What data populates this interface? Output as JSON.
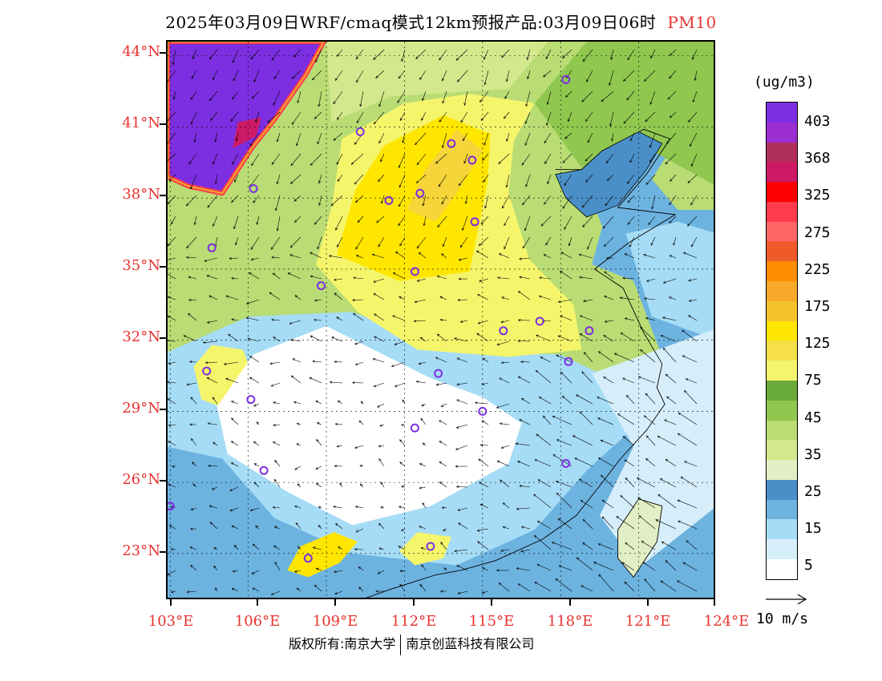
{
  "title": {
    "text": "2025年03月09日WRF/cmaq模式12km预报产品:03月09日06时",
    "variable": "PM10"
  },
  "map": {
    "lat_labels": [
      "44°N",
      "41°N",
      "38°N",
      "35°N",
      "32°N",
      "29°N",
      "26°N",
      "23°N"
    ],
    "lon_labels": [
      "103°E",
      "106°E",
      "109°E",
      "112°E",
      "115°E",
      "118°E",
      "121°E",
      "124°E"
    ],
    "lon_range": [
      102.9,
      124.0
    ],
    "lat_range": [
      21.0,
      44.6
    ],
    "city_marker_color": "#7b2fe0",
    "cities": [
      {
        "lon": 118.2,
        "lat": 43.0
      },
      {
        "lon": 110.3,
        "lat": 40.8
      },
      {
        "lon": 113.8,
        "lat": 40.3
      },
      {
        "lon": 114.6,
        "lat": 39.6
      },
      {
        "lon": 106.2,
        "lat": 38.4
      },
      {
        "lon": 111.4,
        "lat": 37.9
      },
      {
        "lon": 112.6,
        "lat": 38.2
      },
      {
        "lon": 114.7,
        "lat": 37.0
      },
      {
        "lon": 104.6,
        "lat": 35.9
      },
      {
        "lon": 112.4,
        "lat": 34.9
      },
      {
        "lon": 108.8,
        "lat": 34.3
      },
      {
        "lon": 115.8,
        "lat": 32.4
      },
      {
        "lon": 117.2,
        "lat": 32.8
      },
      {
        "lon": 119.1,
        "lat": 32.4
      },
      {
        "lon": 118.3,
        "lat": 31.1
      },
      {
        "lon": 104.4,
        "lat": 30.7
      },
      {
        "lon": 113.3,
        "lat": 30.6
      },
      {
        "lon": 106.1,
        "lat": 29.5
      },
      {
        "lon": 112.4,
        "lat": 28.3
      },
      {
        "lon": 115.0,
        "lat": 29.0
      },
      {
        "lon": 106.6,
        "lat": 26.5
      },
      {
        "lon": 118.2,
        "lat": 26.8
      },
      {
        "lon": 103.0,
        "lat": 25.0
      },
      {
        "lon": 108.3,
        "lat": 22.8
      },
      {
        "lon": 113.0,
        "lat": 23.3
      }
    ],
    "pollution_regions": [
      {
        "color": "#f5f56c",
        "name": "north-china-high",
        "points": [
          [
            108.6,
            35.2
          ],
          [
            109.2,
            37.6
          ],
          [
            109.6,
            40.5
          ],
          [
            112.0,
            42.0
          ],
          [
            114.5,
            42.4
          ],
          [
            117.0,
            42.0
          ],
          [
            116.2,
            40.4
          ],
          [
            116.0,
            38.2
          ],
          [
            116.8,
            35.4
          ],
          [
            118.5,
            33.5
          ],
          [
            118.8,
            31.6
          ],
          [
            116.0,
            31.3
          ],
          [
            112.5,
            31.6
          ],
          [
            110.2,
            33.2
          ]
        ]
      },
      {
        "color": "#ffe600",
        "name": "north-china-core",
        "points": [
          [
            109.4,
            35.6
          ],
          [
            110.1,
            38.3
          ],
          [
            111.2,
            40.2
          ],
          [
            113.5,
            41.5
          ],
          [
            115.3,
            40.7
          ],
          [
            115.2,
            38.7
          ],
          [
            114.8,
            36.5
          ],
          [
            114.5,
            34.9
          ],
          [
            111.8,
            34.5
          ]
        ]
      },
      {
        "color": "#f5d53a",
        "name": "shanxi-hotspot",
        "points": [
          [
            112.1,
            37.5
          ],
          [
            112.8,
            39.2
          ],
          [
            114.0,
            40.9
          ],
          [
            115.0,
            40.0
          ],
          [
            114.0,
            38.2
          ],
          [
            113.2,
            37.0
          ]
        ]
      },
      {
        "color": "#f5f56c",
        "name": "sichuan-basin",
        "points": [
          [
            103.9,
            30.9
          ],
          [
            104.6,
            31.8
          ],
          [
            105.8,
            31.6
          ],
          [
            106.3,
            30.1
          ],
          [
            105.4,
            29.0
          ],
          [
            104.2,
            29.5
          ]
        ]
      },
      {
        "color": "#ffe600",
        "name": "guangxi-hotspot",
        "points": [
          [
            107.5,
            22.3
          ],
          [
            108.0,
            23.3
          ],
          [
            109.3,
            23.9
          ],
          [
            110.2,
            23.5
          ],
          [
            109.5,
            22.6
          ],
          [
            108.3,
            22.0
          ]
        ]
      },
      {
        "color": "#f5f56c",
        "name": "guangdong-patch",
        "points": [
          [
            111.8,
            23.1
          ],
          [
            112.5,
            23.9
          ],
          [
            113.8,
            23.7
          ],
          [
            113.5,
            22.8
          ],
          [
            112.4,
            22.5
          ]
        ]
      },
      {
        "color": "#7b2fe0",
        "name": "northwest-dust",
        "points": [
          [
            102.9,
            44.6
          ],
          [
            108.9,
            44.6
          ],
          [
            108.2,
            43.2
          ],
          [
            107.0,
            41.3
          ],
          [
            106.2,
            40.2
          ],
          [
            105.0,
            38.2
          ],
          [
            103.7,
            38.5
          ],
          [
            102.9,
            38.9
          ]
        ]
      },
      {
        "color": "#cc1a66",
        "name": "dust-edge",
        "points": [
          [
            105.6,
            41.2
          ],
          [
            106.5,
            41.4
          ],
          [
            106.3,
            40.6
          ],
          [
            105.4,
            40.1
          ]
        ]
      }
    ],
    "clean_regions": [
      {
        "color": "#ffffff",
        "name": "south-central-clean",
        "points": [
          [
            104.8,
            29.2
          ],
          [
            106.2,
            31.4
          ],
          [
            109.0,
            32.6
          ],
          [
            113.0,
            30.4
          ],
          [
            115.0,
            29.6
          ],
          [
            116.5,
            28.5
          ],
          [
            116.0,
            26.8
          ],
          [
            113.0,
            25.0
          ],
          [
            110.0,
            24.2
          ],
          [
            107.5,
            25.6
          ],
          [
            105.2,
            27.2
          ]
        ]
      },
      {
        "color": "#d6eefa",
        "name": "ocean-light",
        "points": [
          [
            119.2,
            30.6
          ],
          [
            124.0,
            32.5
          ],
          [
            124.0,
            25.0
          ],
          [
            121.0,
            22.4
          ],
          [
            119.5,
            24.6
          ],
          [
            120.8,
            27.5
          ]
        ]
      }
    ]
  },
  "colorbar": {
    "unit": "(ug/m3)",
    "labels": [
      "403",
      "368",
      "325",
      "275",
      "225",
      "175",
      "125",
      "75",
      "45",
      "35",
      "25",
      "15",
      "5"
    ],
    "colors": [
      "#7b2fe0",
      "#9b2ed1",
      "#b0305a",
      "#cc1a66",
      "#ff0000",
      "#ff3b4e",
      "#ff6666",
      "#ef5a2a",
      "#ff8c00",
      "#f6a929",
      "#f5c22c",
      "#ffe600",
      "#f5e04a",
      "#f5f56c",
      "#6aaa3a",
      "#8fc74f",
      "#b9dc74",
      "#d3e88c",
      "#e2efc4",
      "#4b8fc8",
      "#6db3e0",
      "#a6dcf5",
      "#d6eefa",
      "#ffffff"
    ]
  },
  "wind_reference": {
    "label": "10 m/s"
  },
  "footer": {
    "left": "版权所有:南京大学",
    "right": "南京创蓝科技有限公司"
  }
}
